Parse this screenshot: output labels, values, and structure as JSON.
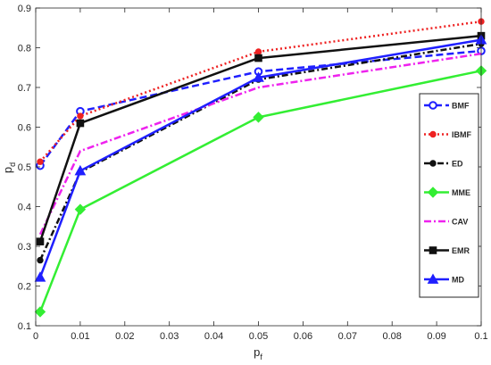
{
  "chart_data": {
    "type": "line",
    "title": "",
    "xlabel": {
      "main": "p",
      "sub": "f"
    },
    "ylabel": {
      "main": "p",
      "sub": "d"
    },
    "xlim": [
      0,
      0.1
    ],
    "ylim": [
      0.1,
      0.9
    ],
    "xticks": [
      0,
      0.01,
      0.02,
      0.03,
      0.04,
      0.05,
      0.06,
      0.07,
      0.08,
      0.09,
      0.1
    ],
    "xtick_labels": [
      "0",
      "0.01",
      "0.02",
      "0.03",
      "0.04",
      "0.05",
      "0.06",
      "0.07",
      "0.08",
      "0.09",
      "0.1"
    ],
    "yticks": [
      0.1,
      0.2,
      0.3,
      0.4,
      0.5,
      0.6,
      0.7,
      0.8,
      0.9
    ],
    "ytick_labels": [
      "0.1",
      "0.2",
      "0.3",
      "0.4",
      "0.5",
      "0.6",
      "0.7",
      "0.8",
      "0.9"
    ],
    "grid": false,
    "legend_position": "right",
    "x": [
      0.001,
      0.01,
      0.05,
      0.1
    ],
    "series": [
      {
        "name": "BMF",
        "values": [
          0.503,
          0.64,
          0.74,
          0.792
        ],
        "color": "#1f1fff",
        "dash": "8,4",
        "marker": "circle-open",
        "width": 2.5
      },
      {
        "name": "IBMF",
        "values": [
          0.513,
          0.628,
          0.79,
          0.866
        ],
        "color": "#ee2222",
        "dash": "2,3",
        "marker": "dot",
        "width": 2.5
      },
      {
        "name": "ED",
        "values": [
          0.265,
          0.487,
          0.72,
          0.81
        ],
        "color": "#111111",
        "dash": "7,3,2,3",
        "marker": "dot",
        "width": 2.5
      },
      {
        "name": "MME",
        "values": [
          0.135,
          0.393,
          0.625,
          0.742
        ],
        "color": "#33ee33",
        "dash": "",
        "marker": "diamond",
        "width": 2.5
      },
      {
        "name": "CAV",
        "values": [
          0.33,
          0.54,
          0.7,
          0.785
        ],
        "color": "#ee22ee",
        "dash": "8,3,2,3",
        "marker": "none",
        "width": 2.5
      },
      {
        "name": "EMR",
        "values": [
          0.312,
          0.61,
          0.774,
          0.83
        ],
        "color": "#111111",
        "dash": "",
        "marker": "square",
        "width": 2.5
      },
      {
        "name": "MD",
        "values": [
          0.222,
          0.49,
          0.725,
          0.82
        ],
        "color": "#1f1fff",
        "dash": "",
        "marker": "triangle",
        "width": 2.5
      }
    ]
  }
}
